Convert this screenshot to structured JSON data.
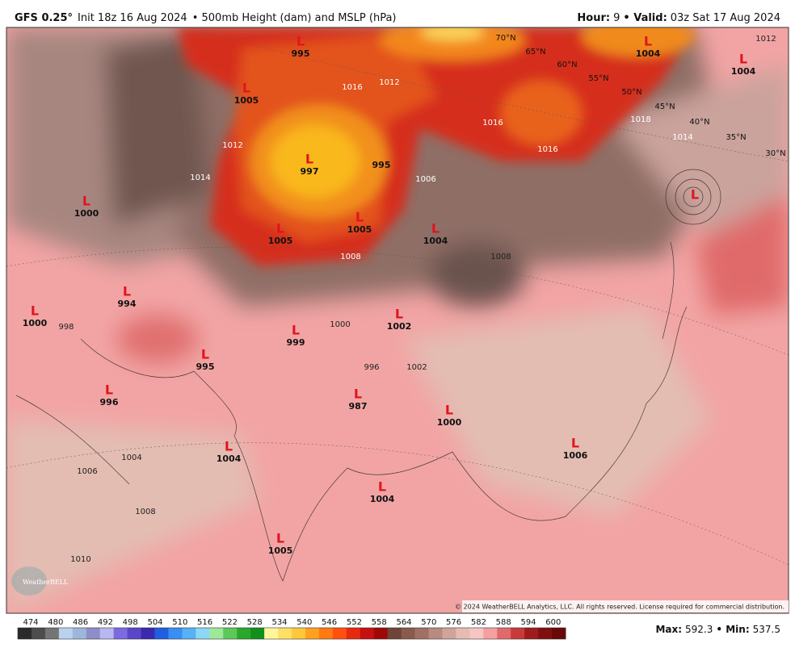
{
  "header": {
    "model": "GFS 0.25°",
    "init": "Init 18z 16 Aug 2024",
    "product": "• 500mb Height (dam) and MSLP (hPa)",
    "hour_label": "Hour:",
    "hour": "9",
    "valid_label": "• Valid:",
    "valid": "03z Sat 17 Aug 2024"
  },
  "map": {
    "lows": [
      {
        "symbol": "L",
        "pressure": 995
      },
      {
        "symbol": "L",
        "pressure": 1004
      },
      {
        "symbol": "L",
        "pressure": 1004
      },
      {
        "symbol": "L",
        "pressure": 1005
      },
      {
        "symbol": "L",
        "pressure": 997
      },
      {
        "pressure": 995
      },
      {
        "symbol": "L",
        "pressure": 1000
      },
      {
        "symbol": "L",
        "pressure": 1005
      },
      {
        "symbol": "L",
        "pressure": 1005
      },
      {
        "symbol": "L",
        "pressure": 1004
      },
      {
        "symbol": "L",
        "pressure": 994
      },
      {
        "symbol": "L",
        "pressure": 1000
      },
      {
        "symbol": "L",
        "pressure": 999
      },
      {
        "symbol": "L",
        "pressure": 1002
      },
      {
        "symbol": "L",
        "pressure": 995
      },
      {
        "symbol": "L",
        "pressure": 996
      },
      {
        "symbol": "L",
        "pressure": 987
      },
      {
        "symbol": "L",
        "pressure": 1000
      },
      {
        "symbol": "L",
        "pressure": 1004
      },
      {
        "symbol": "L",
        "pressure": 1006
      },
      {
        "symbol": "L",
        "pressure": 1004
      },
      {
        "symbol": "L",
        "pressure": 1005
      },
      {
        "symbol": "L"
      }
    ],
    "latitudes": [
      "70°N",
      "65°N",
      "60°N",
      "55°N",
      "50°N",
      "45°N",
      "40°N",
      "35°N",
      "30°N"
    ],
    "isobar_labels": [
      1016,
      1012,
      1008,
      1006,
      996,
      1002,
      1004,
      1006,
      1008,
      1010,
      1000,
      998,
      1016,
      1016,
      1018,
      1014,
      1012,
      1008,
      1014,
      1012
    ]
  },
  "colorbar": {
    "labels": [
      474,
      480,
      486,
      492,
      498,
      504,
      510,
      516,
      522,
      528,
      534,
      540,
      546,
      552,
      558,
      564,
      570,
      576,
      582,
      588,
      594,
      600
    ]
  },
  "footer": {
    "max_label": "Max:",
    "max": "592.3",
    "min_label": "• Min:",
    "min": "537.5",
    "copyright": "© 2024 WeatherBELL Analytics, LLC. All rights reserved. License required for commercial distribution.",
    "logo": "WeatherBELL"
  }
}
